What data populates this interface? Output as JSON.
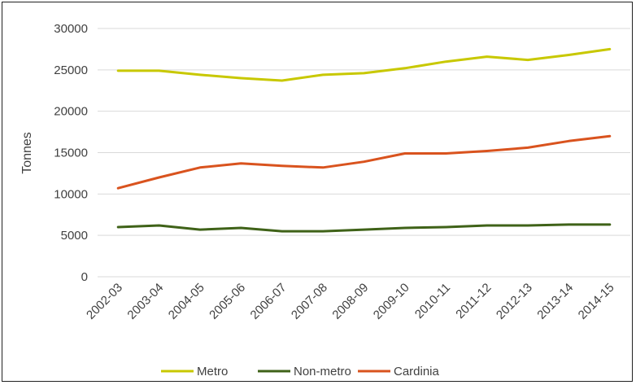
{
  "chart_data": {
    "type": "line",
    "title": "",
    "xlabel": "",
    "ylabel": "Tonnes",
    "ylim": [
      0,
      30000
    ],
    "yticks": [
      0,
      5000,
      10000,
      15000,
      20000,
      25000,
      30000
    ],
    "ytick_labels": [
      "0",
      "5000",
      "10000",
      "15000",
      "20000",
      "25000",
      "30000"
    ],
    "grid": true,
    "legend_position": "bottom",
    "categories": [
      "2002-03",
      "2003-04",
      "2004-05",
      "2005-06",
      "2006-07",
      "2007-08",
      "2008-09",
      "2009-10",
      "2010-11",
      "2011-12",
      "2012-13",
      "2013-14",
      "2014-15"
    ],
    "series": [
      {
        "name": "Metro",
        "color": "#c8c800",
        "values": [
          24900,
          24900,
          24400,
          24000,
          23700,
          24400,
          24600,
          25200,
          26000,
          26600,
          26200,
          26800,
          27500
        ]
      },
      {
        "name": "Non-metro",
        "color": "#3f6218",
        "values": [
          6000,
          6200,
          5700,
          5900,
          5500,
          5500,
          5700,
          5900,
          6000,
          6200,
          6200,
          6300,
          6300
        ]
      },
      {
        "name": "Cardinia",
        "color": "#d9531e",
        "values": [
          10700,
          12000,
          13200,
          13700,
          13400,
          13200,
          13900,
          14900,
          14900,
          15200,
          15600,
          16400,
          17000
        ]
      }
    ]
  }
}
